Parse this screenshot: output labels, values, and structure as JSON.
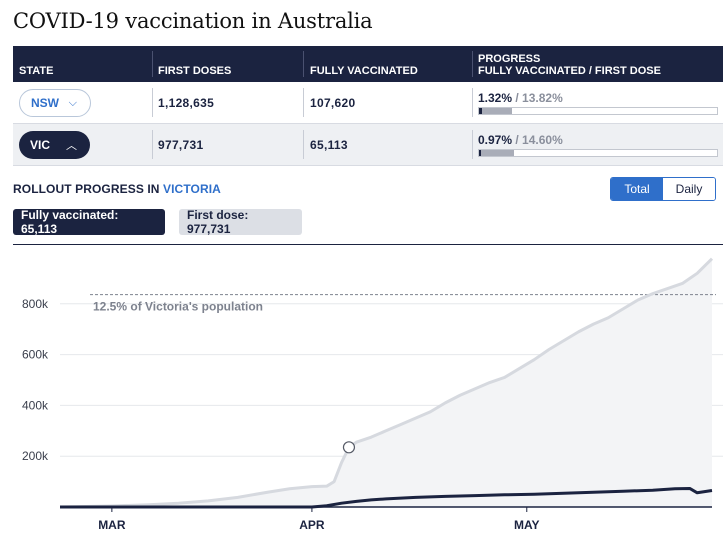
{
  "title": "COVID-19 vaccination in Australia",
  "table": {
    "headers": {
      "state": "STATE",
      "first_doses": "FIRST DOSES",
      "fully_vaccinated": "FULLY VACCINATED",
      "progress_line1": "PROGRESS",
      "progress_line2": "FULLY VACCINATED / FIRST DOSE"
    },
    "rows": [
      {
        "state": "NSW",
        "first_doses": "1,128,635",
        "fully_vaccinated": "107,620",
        "progress_full": "1.32%",
        "progress_sep": " / ",
        "progress_first": "13.82%",
        "fill_full_pct": 1.32,
        "fill_first_pct": 13.82,
        "expanded": false
      },
      {
        "state": "VIC",
        "first_doses": "977,731",
        "fully_vaccinated": "65,113",
        "progress_full": "0.97%",
        "progress_sep": " / ",
        "progress_first": "14.60%",
        "fill_full_pct": 0.97,
        "fill_first_pct": 14.6,
        "expanded": true
      }
    ]
  },
  "rollout": {
    "prefix": "ROLLOUT PROGRESS IN ",
    "location": "VICTORIA"
  },
  "toggle": {
    "total": "Total",
    "daily": "Daily",
    "selected": "Total"
  },
  "chips": {
    "fully": "Fully vaccinated: 65,113",
    "first": "First dose: 977,731"
  },
  "colors": {
    "navy": "#1b2340",
    "accent_blue": "#2f6fca",
    "first_dose_line": "#d6d9df",
    "area_fill": "#f3f4f6"
  },
  "chart_data": {
    "type": "line",
    "x_ticks": [
      "MAR",
      "APR",
      "MAY"
    ],
    "y_ticks": [
      "200k",
      "400k",
      "600k",
      "800k"
    ],
    "ylim": [
      0,
      1000000
    ],
    "reference_line": {
      "value": 836000,
      "label": "12.5% of Victoria's population"
    },
    "marker": {
      "series": "First dose",
      "day": 39,
      "value": 235000
    },
    "x_day_range": [
      0,
      88
    ],
    "x_tick_days": [
      7,
      34,
      63
    ],
    "series": [
      {
        "name": "First dose",
        "color": "#d6d9df",
        "points": [
          [
            0,
            0
          ],
          [
            7,
            4000
          ],
          [
            12,
            9000
          ],
          [
            16,
            15000
          ],
          [
            20,
            24000
          ],
          [
            24,
            38000
          ],
          [
            28,
            58000
          ],
          [
            31,
            72000
          ],
          [
            34,
            80000
          ],
          [
            36,
            82000
          ],
          [
            37,
            100000
          ],
          [
            38,
            175000
          ],
          [
            39,
            235000
          ],
          [
            40,
            255000
          ],
          [
            42,
            275000
          ],
          [
            44,
            300000
          ],
          [
            46,
            325000
          ],
          [
            48,
            350000
          ],
          [
            50,
            375000
          ],
          [
            52,
            410000
          ],
          [
            54,
            440000
          ],
          [
            56,
            465000
          ],
          [
            58,
            490000
          ],
          [
            60,
            510000
          ],
          [
            62,
            545000
          ],
          [
            64,
            580000
          ],
          [
            66,
            620000
          ],
          [
            68,
            655000
          ],
          [
            70,
            690000
          ],
          [
            72,
            720000
          ],
          [
            74,
            745000
          ],
          [
            76,
            780000
          ],
          [
            78,
            815000
          ],
          [
            80,
            840000
          ],
          [
            82,
            860000
          ],
          [
            84,
            880000
          ],
          [
            86,
            920000
          ],
          [
            88,
            977731
          ]
        ]
      },
      {
        "name": "Fully vaccinated",
        "color": "#1b2340",
        "points": [
          [
            0,
            0
          ],
          [
            7,
            0
          ],
          [
            20,
            0
          ],
          [
            34,
            0
          ],
          [
            36,
            5000
          ],
          [
            38,
            15000
          ],
          [
            40,
            22000
          ],
          [
            42,
            28000
          ],
          [
            44,
            32000
          ],
          [
            48,
            38000
          ],
          [
            52,
            42000
          ],
          [
            56,
            45000
          ],
          [
            60,
            48000
          ],
          [
            64,
            50000
          ],
          [
            68,
            54000
          ],
          [
            72,
            58000
          ],
          [
            76,
            62000
          ],
          [
            80,
            66000
          ],
          [
            83,
            72000
          ],
          [
            85,
            73000
          ],
          [
            86,
            56000
          ],
          [
            88,
            65113
          ]
        ]
      }
    ]
  }
}
